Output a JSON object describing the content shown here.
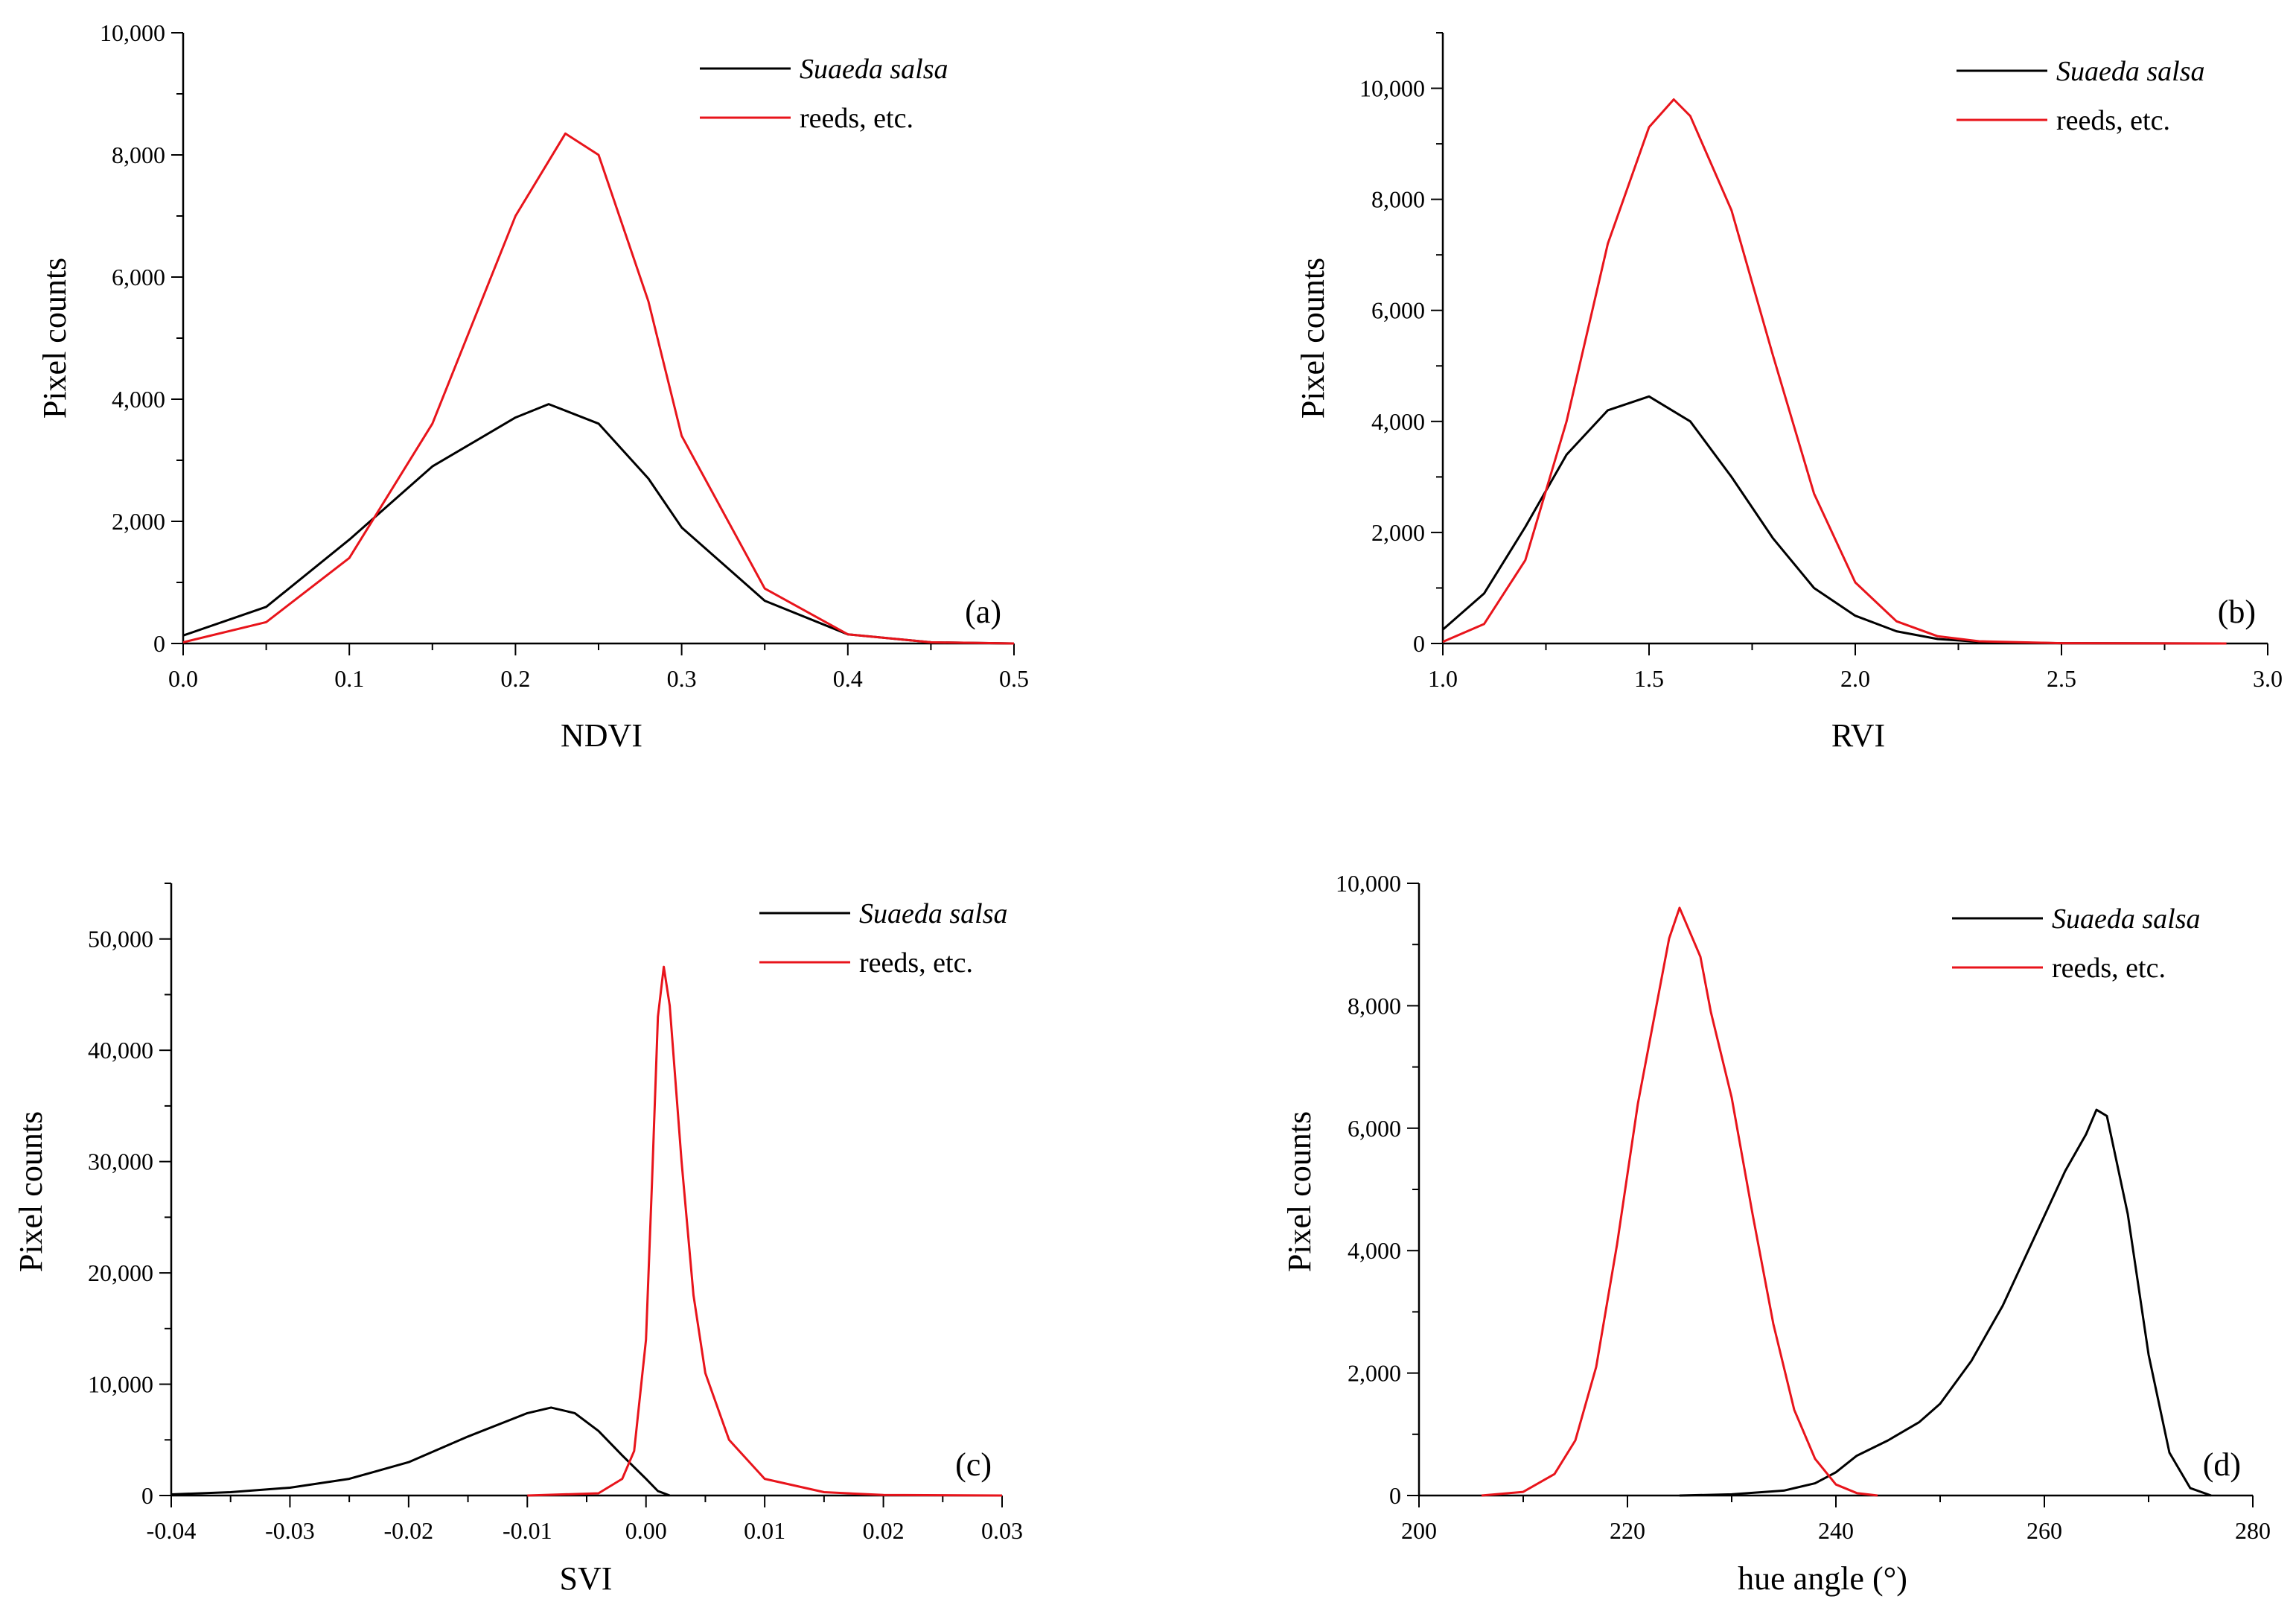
{
  "colors": {
    "suaeda": "#000000",
    "reeds": "#e8141b"
  },
  "chart_data": [
    {
      "type": "line",
      "panel_label": "(a)",
      "xlabel": "NDVI",
      "ylabel": "Pixel counts",
      "xlim": [
        0.0,
        0.5
      ],
      "ylim": [
        0,
        10000
      ],
      "xticks": [
        0.0,
        0.1,
        0.2,
        0.3,
        0.4,
        0.5
      ],
      "xtick_labels": [
        "0.0",
        "0.1",
        "0.2",
        "0.3",
        "0.4",
        "0.5"
      ],
      "yticks": [
        0,
        2000,
        4000,
        6000,
        8000,
        10000
      ],
      "ytick_labels": [
        "0",
        "2,000",
        "4,000",
        "6,000",
        "8,000",
        "10,000"
      ],
      "legend": [
        "Suaeda salsa",
        "reeds, etc."
      ],
      "series": [
        {
          "name": "Suaeda salsa",
          "x": [
            0.0,
            0.05,
            0.1,
            0.15,
            0.2,
            0.22,
            0.25,
            0.28,
            0.3,
            0.35,
            0.4,
            0.45,
            0.5
          ],
          "y": [
            130,
            600,
            1700,
            2900,
            3700,
            3920,
            3600,
            2700,
            1900,
            700,
            150,
            20,
            0
          ]
        },
        {
          "name": "reeds, etc.",
          "x": [
            0.0,
            0.05,
            0.1,
            0.15,
            0.2,
            0.23,
            0.25,
            0.28,
            0.3,
            0.35,
            0.4,
            0.45,
            0.5
          ],
          "y": [
            20,
            350,
            1400,
            3600,
            7000,
            8350,
            8000,
            5600,
            3400,
            900,
            150,
            20,
            0
          ]
        }
      ]
    },
    {
      "type": "line",
      "panel_label": "(b)",
      "xlabel": "RVI",
      "ylabel": "Pixel counts",
      "xlim": [
        1.0,
        3.0
      ],
      "ylim": [
        0,
        11000
      ],
      "xticks": [
        1.0,
        1.5,
        2.0,
        2.5,
        3.0
      ],
      "xtick_labels": [
        "1.0",
        "1.5",
        "2.0",
        "2.5",
        "3.0"
      ],
      "yticks": [
        0,
        2000,
        4000,
        6000,
        8000,
        10000
      ],
      "ytick_labels": [
        "0",
        "2,000",
        "4,000",
        "6,000",
        "8,000",
        "10,000"
      ],
      "legend": [
        "Suaeda salsa",
        "reeds, etc."
      ],
      "series": [
        {
          "name": "Suaeda salsa",
          "x": [
            1.0,
            1.1,
            1.2,
            1.3,
            1.4,
            1.5,
            1.6,
            1.7,
            1.8,
            1.9,
            2.0,
            2.1,
            2.2,
            2.3,
            2.5,
            2.9
          ],
          "y": [
            250,
            900,
            2100,
            3400,
            4200,
            4450,
            4000,
            3000,
            1900,
            1000,
            500,
            220,
            80,
            30,
            5,
            0
          ]
        },
        {
          "name": "reeds, etc.",
          "x": [
            1.0,
            1.1,
            1.2,
            1.3,
            1.4,
            1.5,
            1.56,
            1.6,
            1.7,
            1.8,
            1.9,
            2.0,
            2.1,
            2.2,
            2.3,
            2.5,
            2.9
          ],
          "y": [
            30,
            350,
            1500,
            4000,
            7200,
            9300,
            9800,
            9500,
            7800,
            5200,
            2700,
            1100,
            400,
            130,
            40,
            5,
            0
          ]
        }
      ]
    },
    {
      "type": "line",
      "panel_label": "(c)",
      "xlabel": "SVI",
      "ylabel": "Pixel counts",
      "xlim": [
        -0.04,
        0.03
      ],
      "ylim": [
        0,
        55000
      ],
      "xticks": [
        -0.04,
        -0.03,
        -0.02,
        -0.01,
        0.0,
        0.01,
        0.02,
        0.03
      ],
      "xtick_labels": [
        "-0.04",
        "-0.03",
        "-0.02",
        "-0.01",
        "0.00",
        "0.01",
        "0.02",
        "0.03"
      ],
      "yticks": [
        0,
        10000,
        20000,
        30000,
        40000,
        50000
      ],
      "ytick_labels": [
        "0",
        "10,000",
        "20,000",
        "30,000",
        "40,000",
        "50,000"
      ],
      "legend": [
        "Suaeda salsa",
        "reeds, etc."
      ],
      "series": [
        {
          "name": "Suaeda salsa",
          "x": [
            -0.04,
            -0.035,
            -0.03,
            -0.025,
            -0.02,
            -0.015,
            -0.01,
            -0.008,
            -0.006,
            -0.004,
            -0.002,
            0.0,
            0.001,
            0.002
          ],
          "y": [
            100,
            300,
            700,
            1500,
            3000,
            5300,
            7400,
            7900,
            7400,
            5800,
            3600,
            1500,
            400,
            0
          ]
        },
        {
          "name": "reeds, etc.",
          "x": [
            -0.01,
            -0.004,
            -0.002,
            -0.001,
            0.0,
            0.0005,
            0.001,
            0.0015,
            0.002,
            0.003,
            0.004,
            0.005,
            0.007,
            0.01,
            0.015,
            0.02,
            0.03
          ],
          "y": [
            0,
            200,
            1500,
            4000,
            14000,
            28000,
            43000,
            47500,
            44000,
            30000,
            18000,
            11000,
            5000,
            1500,
            300,
            50,
            0
          ]
        }
      ]
    },
    {
      "type": "line",
      "panel_label": "(d)",
      "xlabel": "hue angle (°)",
      "ylabel": "Pixel counts",
      "xlim": [
        200,
        280
      ],
      "ylim": [
        0,
        10000
      ],
      "xticks": [
        200,
        220,
        240,
        260,
        280
      ],
      "xtick_labels": [
        "200",
        "220",
        "240",
        "260",
        "280"
      ],
      "yticks": [
        0,
        2000,
        4000,
        6000,
        8000,
        10000
      ],
      "ytick_labels": [
        "0",
        "2,000",
        "4,000",
        "6,000",
        "8,000",
        "10,000"
      ],
      "legend": [
        "Suaeda salsa",
        "reeds, etc."
      ],
      "series": [
        {
          "name": "Suaeda salsa",
          "x": [
            225,
            230,
            235,
            238,
            240,
            242,
            245,
            248,
            250,
            253,
            256,
            259,
            262,
            264,
            265,
            266,
            268,
            270,
            272,
            274,
            276
          ],
          "y": [
            0,
            20,
            80,
            200,
            380,
            650,
            900,
            1200,
            1500,
            2200,
            3100,
            4200,
            5300,
            5900,
            6300,
            6200,
            4600,
            2300,
            700,
            120,
            0
          ]
        },
        {
          "name": "reeds, etc.",
          "x": [
            206,
            210,
            213,
            215,
            217,
            219,
            221,
            223,
            224,
            225,
            226,
            227,
            228,
            230,
            232,
            234,
            236,
            238,
            240,
            242,
            244
          ],
          "y": [
            0,
            60,
            350,
            900,
            2100,
            4100,
            6400,
            8200,
            9100,
            9600,
            9200,
            8800,
            7900,
            6500,
            4600,
            2800,
            1400,
            600,
            180,
            40,
            0
          ]
        }
      ]
    }
  ]
}
